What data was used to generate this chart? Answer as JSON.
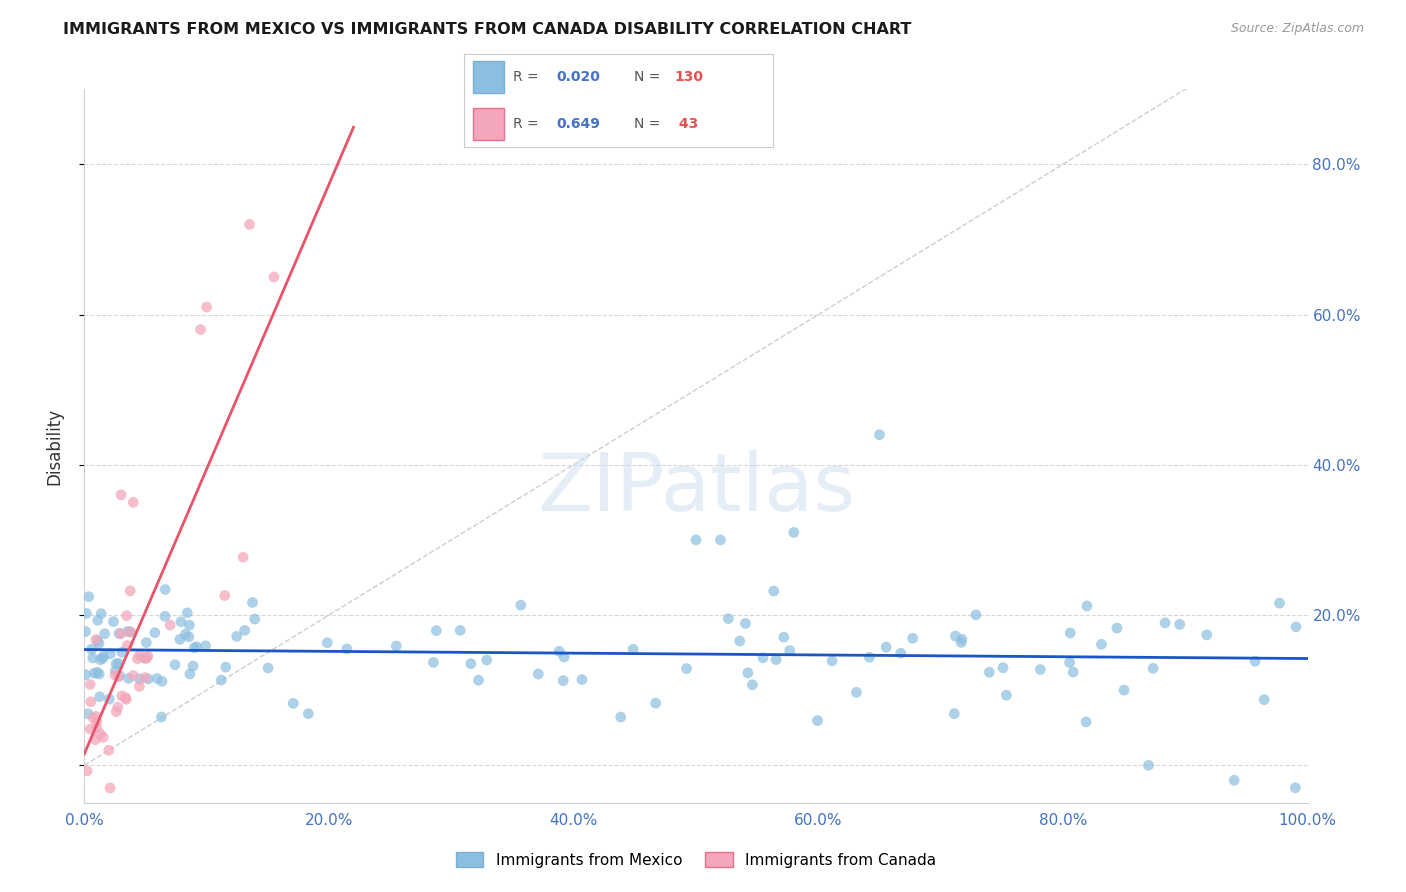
{
  "title": "IMMIGRANTS FROM MEXICO VS IMMIGRANTS FROM CANADA DISABILITY CORRELATION CHART",
  "source": "Source: ZipAtlas.com",
  "ylabel": "Disability",
  "mexico_R": 0.02,
  "mexico_N": 130,
  "canada_R": 0.649,
  "canada_N": 43,
  "xlim": [
    0.0,
    1.0
  ],
  "ylim": [
    -0.05,
    0.9
  ],
  "yticks": [
    0.0,
    0.2,
    0.4,
    0.6,
    0.8
  ],
  "ytick_labels": [
    "",
    "20.0%",
    "40.0%",
    "60.0%",
    "80.0%"
  ],
  "xticks": [
    0.0,
    0.2,
    0.4,
    0.6,
    0.8,
    1.0
  ],
  "xtick_labels": [
    "0.0%",
    "20.0%",
    "40.0%",
    "60.0%",
    "80.0%",
    "100.0%"
  ],
  "mexico_color": "#8bbee0",
  "canada_color": "#f4a7ba",
  "mexico_line_color": "#1a56c4",
  "canada_line_color": "#e8546a",
  "diagonal_color": "#c8c8c8",
  "watermark_text": "ZIPatlas",
  "background_color": "#ffffff",
  "grid_color": "#d8d8d8",
  "tick_color": "#4472c4",
  "legend_border_color": "#cccccc"
}
